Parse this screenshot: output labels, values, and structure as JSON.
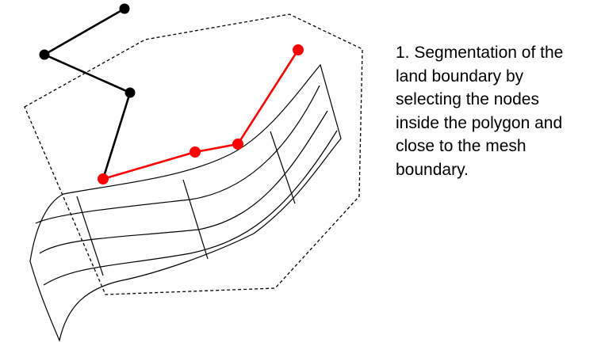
{
  "caption": "1. Segmentation of the\nland boundary by\nselecting the nodes\ninside the polygon and\nclose to the mesh\nboundary.",
  "colors": {
    "mesh": "#000000",
    "polygon": "#000000",
    "land_boundary": "#000000",
    "selected_segment": "#ff0000",
    "background": "#ffffff"
  },
  "legend": {
    "selection_polygon": "dashed-outline",
    "mesh": "curvilinear-grid",
    "unselected_nodes": "black-dots",
    "selected_nodes": "red-dots"
  }
}
